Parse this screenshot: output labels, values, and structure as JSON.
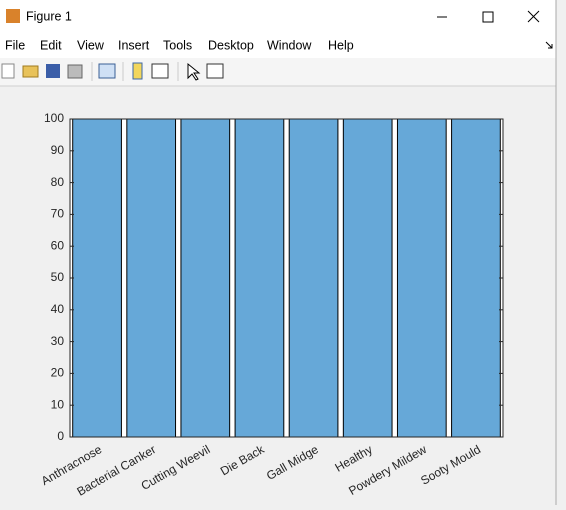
{
  "window": {
    "title": "Figure 1",
    "menu": [
      "File",
      "Edit",
      "View",
      "Insert",
      "Tools",
      "Desktop",
      "Window",
      "Help"
    ]
  },
  "chart_data": {
    "type": "bar",
    "categories": [
      "Anthracnose",
      "Bacterial Canker",
      "Cutting Weevil",
      "Die Back",
      "Gall Midge",
      "Healthy",
      "Powdery Mildew",
      "Sooty Mould"
    ],
    "values": [
      100,
      100,
      100,
      100,
      100,
      100,
      100,
      100
    ],
    "color": "#66a8d8",
    "ylim": [
      0,
      100
    ],
    "yticks": [
      0,
      10,
      20,
      30,
      40,
      50,
      60,
      70,
      80,
      90,
      100
    ],
    "grid": false
  }
}
